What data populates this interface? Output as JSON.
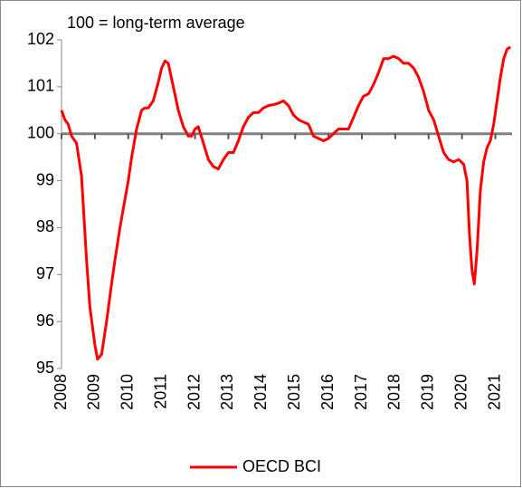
{
  "chart_data": {
    "type": "line",
    "annotation": "100 = long-term average",
    "x": [
      2008.0,
      2008.1,
      2008.2,
      2008.3,
      2008.45,
      2008.6,
      2008.75,
      2008.85,
      2009.0,
      2009.08,
      2009.2,
      2009.35,
      2009.5,
      2009.6,
      2009.75,
      2009.9,
      2010.0,
      2010.1,
      2010.25,
      2010.4,
      2010.5,
      2010.6,
      2010.75,
      2010.9,
      2011.0,
      2011.1,
      2011.2,
      2011.35,
      2011.5,
      2011.65,
      2011.8,
      2011.9,
      2012.0,
      2012.1,
      2012.25,
      2012.4,
      2012.55,
      2012.7,
      2012.85,
      2013.0,
      2013.15,
      2013.3,
      2013.45,
      2013.6,
      2013.75,
      2013.9,
      2014.05,
      2014.2,
      2014.35,
      2014.5,
      2014.65,
      2014.8,
      2014.95,
      2015.1,
      2015.25,
      2015.4,
      2015.55,
      2015.7,
      2015.85,
      2016.0,
      2016.15,
      2016.3,
      2016.45,
      2016.6,
      2016.75,
      2016.9,
      2017.05,
      2017.2,
      2017.35,
      2017.5,
      2017.65,
      2017.8,
      2017.95,
      2018.1,
      2018.25,
      2018.4,
      2018.55,
      2018.7,
      2018.85,
      2019.0,
      2019.15,
      2019.3,
      2019.45,
      2019.6,
      2019.75,
      2019.9,
      2020.05,
      2020.15,
      2020.22,
      2020.3,
      2020.37,
      2020.45,
      2020.55,
      2020.65,
      2020.75,
      2020.85,
      2020.95,
      2021.05,
      2021.15,
      2021.25,
      2021.35,
      2021.45
    ],
    "series": [
      {
        "name": "OECD BCI",
        "color": "#ff0000",
        "values": [
          100.5,
          100.3,
          100.2,
          99.95,
          99.8,
          99.1,
          97.3,
          96.3,
          95.5,
          95.2,
          95.3,
          96.0,
          96.8,
          97.3,
          98.0,
          98.6,
          99.0,
          99.5,
          100.1,
          100.5,
          100.55,
          100.55,
          100.7,
          101.1,
          101.4,
          101.55,
          101.5,
          101.0,
          100.5,
          100.15,
          99.95,
          99.95,
          100.1,
          100.15,
          99.8,
          99.45,
          99.3,
          99.25,
          99.45,
          99.6,
          99.6,
          99.85,
          100.15,
          100.35,
          100.45,
          100.45,
          100.55,
          100.6,
          100.62,
          100.65,
          100.7,
          100.6,
          100.4,
          100.3,
          100.25,
          100.2,
          99.95,
          99.9,
          99.85,
          99.9,
          100.0,
          100.1,
          100.1,
          100.1,
          100.35,
          100.6,
          100.8,
          100.85,
          101.05,
          101.3,
          101.6,
          101.6,
          101.65,
          101.6,
          101.5,
          101.5,
          101.4,
          101.2,
          100.9,
          100.5,
          100.3,
          99.95,
          99.6,
          99.45,
          99.4,
          99.45,
          99.35,
          99.0,
          97.9,
          97.1,
          96.8,
          97.5,
          98.8,
          99.4,
          99.7,
          99.85,
          100.2,
          100.7,
          101.2,
          101.6,
          101.8,
          101.85
        ]
      }
    ],
    "reference_line": 100,
    "xlim": [
      2008,
      2021.5
    ],
    "xticks": [
      2008,
      2009,
      2010,
      2011,
      2012,
      2013,
      2014,
      2015,
      2016,
      2017,
      2018,
      2019,
      2020,
      2021
    ],
    "ylim": [
      95,
      102
    ],
    "yticks": [
      95,
      96,
      97,
      98,
      99,
      100,
      101,
      102
    ],
    "legend": "bottom"
  }
}
